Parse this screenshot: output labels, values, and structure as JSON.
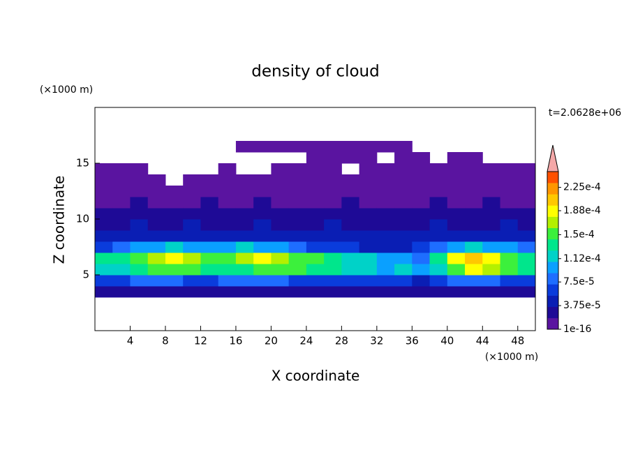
{
  "chart_data": {
    "type": "contour",
    "title": "density of cloud",
    "time_label": "t=2.0628e+06",
    "xlabel": "X coordinate",
    "ylabel": "Z coordinate",
    "xunit": "(×1000 m)",
    "yunit": "(×1000 m)",
    "xlim": [
      0,
      50
    ],
    "ylim": [
      0,
      20
    ],
    "xticks": [
      4,
      8,
      12,
      16,
      20,
      24,
      28,
      32,
      36,
      40,
      44,
      48
    ],
    "yticks": [
      5,
      10,
      15
    ],
    "x": [
      0,
      2,
      4,
      6,
      8,
      10,
      12,
      14,
      16,
      18,
      20,
      22,
      24,
      26,
      28,
      30,
      32,
      34,
      36,
      38,
      40,
      42,
      44,
      46,
      48
    ],
    "y": [
      3,
      4,
      5,
      6,
      7,
      8,
      9,
      10,
      11,
      12,
      13,
      14,
      15,
      16
    ],
    "z": [
      [
        2e-05,
        2e-05,
        2e-05,
        2e-05,
        2e-05,
        2e-05,
        2e-05,
        2e-05,
        2e-05,
        2e-05,
        2e-05,
        2e-05,
        2e-05,
        2e-05,
        2e-05,
        2e-05,
        2e-05,
        2e-05,
        2e-05,
        2e-05,
        2e-05,
        2e-05,
        2e-05,
        2e-05,
        2e-05
      ],
      [
        6e-05,
        6e-05,
        8e-05,
        8e-05,
        8e-05,
        6e-05,
        6e-05,
        8e-05,
        8e-05,
        8e-05,
        8e-05,
        6e-05,
        6e-05,
        6e-05,
        6e-05,
        6e-05,
        6e-05,
        6e-05,
        4e-05,
        6e-05,
        8e-05,
        8e-05,
        8e-05,
        6e-05,
        6e-05
      ],
      [
        0.00012,
        0.00012,
        0.00013,
        0.00015,
        0.00016,
        0.00016,
        0.00014,
        0.00013,
        0.00014,
        0.00015,
        0.00016,
        0.00015,
        0.00014,
        0.00013,
        0.00012,
        0.00011,
        0.0001,
        0.00011,
        9e-05,
        0.00012,
        0.00016,
        0.00018,
        0.00017,
        0.00015,
        0.00014
      ],
      [
        0.00013,
        0.00014,
        0.00015,
        0.00017,
        0.00018,
        0.00017,
        0.00016,
        0.00016,
        0.00017,
        0.00018,
        0.00017,
        0.00016,
        0.00015,
        0.00014,
        0.00012,
        0.00011,
        0.0001,
        9e-05,
        8e-05,
        0.00013,
        0.00018,
        0.0002,
        0.00019,
        0.00016,
        0.00013
      ],
      [
        7e-05,
        8e-05,
        9e-05,
        0.0001,
        0.00011,
        0.0001,
        9e-05,
        0.0001,
        0.00011,
        0.0001,
        9e-05,
        8e-05,
        7e-05,
        6e-05,
        6e-05,
        5e-05,
        5e-05,
        5e-05,
        6e-05,
        8e-05,
        0.0001,
        0.00011,
        0.0001,
        9e-05,
        8e-05
      ],
      [
        4e-05,
        5e-05,
        5e-05,
        4e-05,
        5e-05,
        5e-05,
        4e-05,
        4e-05,
        5e-05,
        5e-05,
        4e-05,
        4e-05,
        5e-05,
        4e-05,
        4e-05,
        4e-05,
        5e-05,
        4e-05,
        4e-05,
        5e-05,
        5e-05,
        5e-05,
        4e-05,
        4e-05,
        5e-05
      ],
      [
        3e-05,
        3e-05,
        4e-05,
        3e-05,
        3e-05,
        4e-05,
        3e-05,
        3e-05,
        3e-05,
        4e-05,
        3e-05,
        3e-05,
        3e-05,
        4e-05,
        3e-05,
        3e-05,
        3e-05,
        3e-05,
        3e-05,
        4e-05,
        3e-05,
        3e-05,
        3e-05,
        4e-05,
        3e-05
      ],
      [
        2e-05,
        3e-05,
        2e-05,
        2e-05,
        3e-05,
        2e-05,
        2e-05,
        3e-05,
        2e-05,
        2e-05,
        2e-05,
        3e-05,
        2e-05,
        2e-05,
        2e-05,
        3e-05,
        2e-05,
        2e-05,
        2e-05,
        2e-05,
        3e-05,
        2e-05,
        2e-05,
        3e-05,
        2e-05
      ],
      [
        1e-05,
        1e-05,
        2e-05,
        1e-05,
        1e-05,
        1e-05,
        2e-05,
        1e-05,
        1e-05,
        2e-05,
        1e-05,
        1e-05,
        1e-05,
        1e-05,
        2e-05,
        1e-05,
        1e-05,
        1e-05,
        1e-05,
        2e-05,
        1e-05,
        1e-05,
        2e-05,
        1e-05,
        1e-05
      ],
      [
        1e-06,
        1e-06,
        1e-06,
        1e-06,
        1e-06,
        1e-06,
        1e-06,
        1e-06,
        1e-06,
        1e-06,
        1e-06,
        1e-06,
        1e-06,
        1e-06,
        1e-06,
        1e-06,
        1e-06,
        1e-06,
        1e-06,
        1e-06,
        1e-06,
        1e-06,
        1e-06,
        1e-06,
        1e-06
      ],
      [
        1e-06,
        1e-06,
        1e-06,
        1e-06,
        null,
        1e-06,
        1e-06,
        1e-06,
        1e-06,
        1e-06,
        1e-06,
        1e-06,
        1e-06,
        1e-06,
        1e-06,
        1e-06,
        1e-06,
        1e-06,
        1e-06,
        1e-06,
        1e-06,
        1e-06,
        1e-06,
        1e-06,
        1e-06
      ],
      [
        1e-06,
        1e-06,
        1e-06,
        null,
        null,
        null,
        null,
        1e-06,
        null,
        null,
        1e-06,
        1e-06,
        1e-06,
        1e-06,
        null,
        1e-06,
        1e-06,
        1e-06,
        1e-06,
        1e-06,
        1e-06,
        1e-06,
        1e-06,
        1e-06,
        1e-06
      ],
      [
        null,
        null,
        null,
        null,
        null,
        null,
        null,
        null,
        null,
        null,
        null,
        null,
        1e-06,
        1e-06,
        1e-06,
        1e-06,
        null,
        1e-06,
        1e-06,
        null,
        1e-06,
        1e-06,
        null,
        null,
        null
      ],
      [
        null,
        null,
        null,
        null,
        null,
        null,
        null,
        null,
        1e-06,
        1e-06,
        1e-06,
        1e-06,
        1e-06,
        1e-06,
        1e-06,
        1e-06,
        1e-06,
        1e-06,
        null,
        null,
        null,
        null,
        null,
        null,
        null
      ]
    ],
    "clim": [
      0,
      0.00025
    ],
    "colors": [
      "#5a14a0",
      "#1e0a96",
      "#0a1eb4",
      "#0a3cdc",
      "#1e6eff",
      "#0aa0ff",
      "#00d2c8",
      "#00e68c",
      "#3cf03c",
      "#b4f000",
      "#ffff00",
      "#ffc800",
      "#ff9600",
      "#ff5000"
    ],
    "over_color": "#f4a8a8",
    "cticks": [
      {
        "value": 1e-16,
        "label": "1e-16"
      },
      {
        "value": 3.75e-05,
        "label": "3.75e-5"
      },
      {
        "value": 7.5e-05,
        "label": "7.5e-5"
      },
      {
        "value": 0.000112,
        "label": "1.12e-4"
      },
      {
        "value": 0.00015,
        "label": "1.5e-4"
      },
      {
        "value": 0.000188,
        "label": "1.88e-4"
      },
      {
        "value": 0.000225,
        "label": "2.25e-4"
      }
    ]
  }
}
